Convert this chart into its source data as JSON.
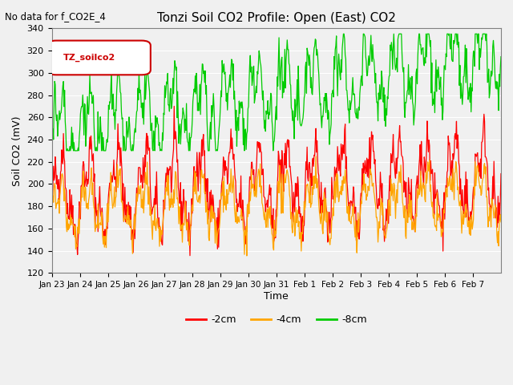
{
  "title": "Tonzi Soil CO2 Profile: Open (East) CO2",
  "subtitle": "No data for f_CO2E_4",
  "ylabel": "Soil CO2 (mV)",
  "xlabel": "Time",
  "legend_label": "TZ_soilco2",
  "series_labels": [
    "-2cm",
    "-4cm",
    "-8cm"
  ],
  "series_colors": [
    "#ff0000",
    "#ffa500",
    "#00cc00"
  ],
  "ylim": [
    120,
    340
  ],
  "date_labels": [
    "Jan 23",
    "Jan 24",
    "Jan 25",
    "Jan 26",
    "Jan 27",
    "Jan 28",
    "Jan 29",
    "Jan 30",
    "Jan 31",
    "Feb 1",
    "Feb 2",
    "Feb 3",
    "Feb 4",
    "Feb 5",
    "Feb 6",
    "Feb 7"
  ],
  "background_color": "#f0f0f0",
  "plot_bg_color": "#f0f0f0"
}
